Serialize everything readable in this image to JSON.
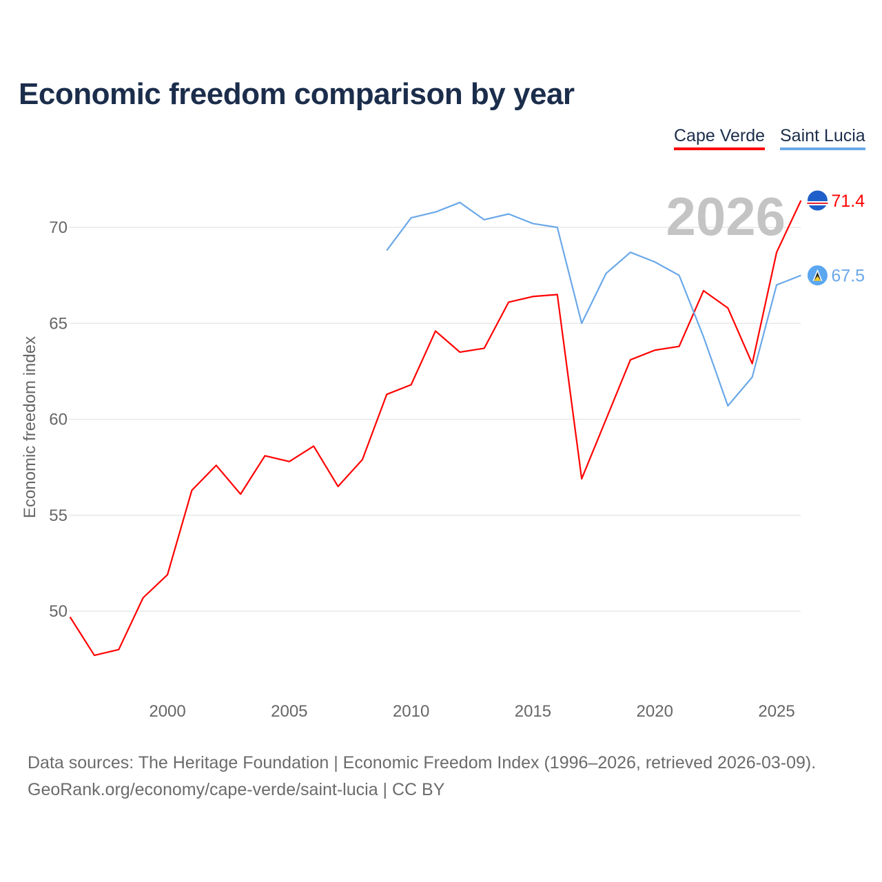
{
  "chart_data": {
    "type": "line",
    "title": "Economic freedom comparison by year",
    "xlabel": "",
    "ylabel": "Economic freedom index",
    "xlim": [
      1996,
      2026
    ],
    "ylim": [
      46,
      73
    ],
    "yticks": [
      50,
      55,
      60,
      65,
      70
    ],
    "xticks": [
      2000,
      2005,
      2010,
      2015,
      2020,
      2025
    ],
    "grid": true,
    "legend_position": "top-right",
    "year_label": "2026",
    "series": [
      {
        "name": "Cape Verde",
        "color": "#ff0000",
        "end_label": "71.4",
        "x": [
          1996,
          1997,
          1998,
          1999,
          2000,
          2001,
          2002,
          2003,
          2004,
          2005,
          2006,
          2007,
          2008,
          2009,
          2010,
          2011,
          2012,
          2013,
          2014,
          2015,
          2016,
          2017,
          2018,
          2019,
          2020,
          2021,
          2022,
          2023,
          2024,
          2025,
          2026
        ],
        "values": [
          49.7,
          47.7,
          48.0,
          50.7,
          51.9,
          56.3,
          57.6,
          56.1,
          58.1,
          57.8,
          58.6,
          56.5,
          57.9,
          61.3,
          61.8,
          64.6,
          63.5,
          63.7,
          66.1,
          66.4,
          66.5,
          56.9,
          60.0,
          63.1,
          63.6,
          63.8,
          66.7,
          65.8,
          62.9,
          68.7,
          71.4
        ]
      },
      {
        "name": "Saint Lucia",
        "color": "#6aa8e8",
        "end_label": "67.5",
        "x": [
          2009,
          2010,
          2011,
          2012,
          2013,
          2014,
          2015,
          2016,
          2017,
          2018,
          2019,
          2020,
          2021,
          2022,
          2023,
          2024,
          2025,
          2026
        ],
        "values": [
          68.8,
          70.5,
          70.8,
          71.3,
          70.4,
          70.7,
          70.2,
          70.0,
          65.0,
          67.6,
          68.7,
          68.2,
          67.5,
          64.3,
          60.7,
          62.2,
          67.0,
          67.5
        ]
      }
    ]
  },
  "footer": {
    "line1": "Data sources: The Heritage Foundation | Economic Freedom Index (1996–2026, retrieved 2026-03-09).",
    "line2": "GeoRank.org/economy/cape-verde/saint-lucia | CC BY"
  }
}
